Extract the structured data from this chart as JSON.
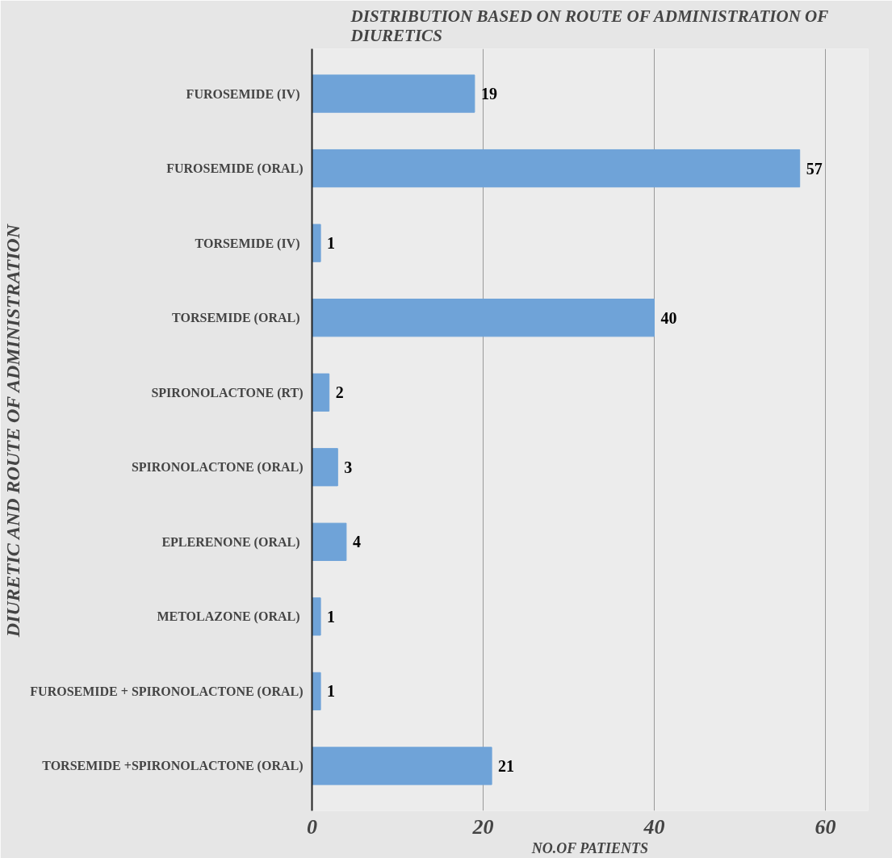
{
  "chart_data": {
    "type": "bar",
    "orientation": "horizontal",
    "title": "DISTRIBUTION BASED ON ROUTE OF ADMINISTRATION OF DIURETICS",
    "xlabel": "NO.OF PATIENTS",
    "ylabel": "DIURETIC AND ROUTE OF ADMINISTRATION",
    "categories": [
      "FUROSEMIDE  (IV)",
      "FUROSEMIDE (ORAL)",
      "TORSEMIDE  (IV)",
      "TORSEMIDE  (ORAL)",
      "SPIRONOLACTONE (RT)",
      "SPIRONOLACTONE (ORAL)",
      "EPLERENONE  (ORAL)",
      "METOLAZONE  (ORAL)",
      "FUROSEMIDE + SPIRONOLACTONE (ORAL)",
      "TORSEMIDE +SPIRONOLACTONE (ORAL)"
    ],
    "values": [
      19,
      57,
      1,
      40,
      2,
      3,
      4,
      1,
      1,
      21
    ],
    "color": "#6fa3d8",
    "xlim": [
      0,
      65
    ],
    "xticks": [
      0,
      20,
      40,
      60
    ],
    "grid": "x",
    "data_labels": true
  }
}
